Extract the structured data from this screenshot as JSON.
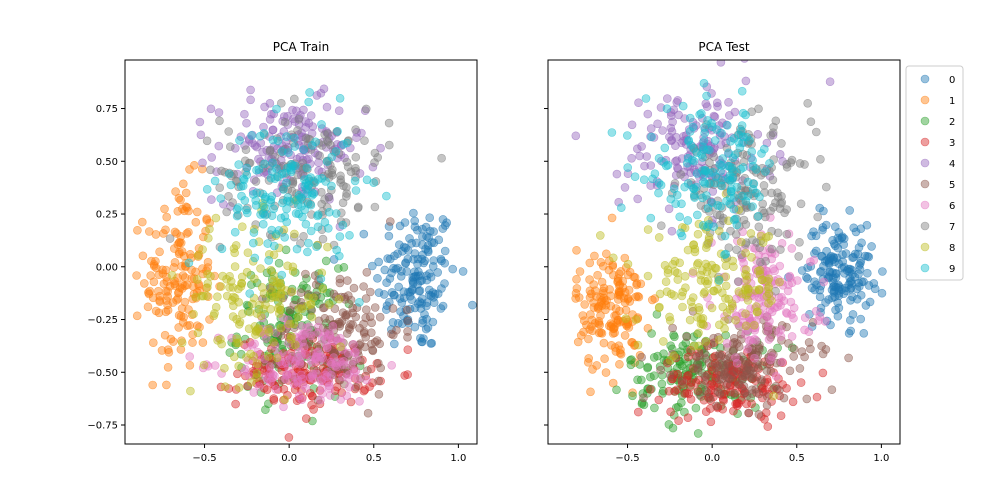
{
  "chart_data": [
    {
      "type": "scatter",
      "title": "PCA Train",
      "xlim": [
        -0.97,
        1.11
      ],
      "ylim": [
        -0.84,
        0.98
      ],
      "xticks": [
        -0.5,
        0.0,
        0.5,
        1.0
      ],
      "xtick_labels": [
        "−0.5",
        "0.0",
        "0.5",
        "1.0"
      ],
      "yticks": [
        -0.75,
        -0.5,
        -0.25,
        0.0,
        0.25,
        0.5,
        0.75
      ],
      "ytick_labels": [
        "−0.75",
        "−0.50",
        "−0.25",
        "0.00",
        "0.25",
        "0.50",
        "0.75"
      ],
      "clusters": [
        {
          "name": "0",
          "center": [
            0.75,
            -0.05
          ],
          "spread": [
            0.12,
            0.18
          ]
        },
        {
          "name": "1",
          "center": [
            -0.65,
            -0.05
          ],
          "spread": [
            0.1,
            0.22
          ]
        },
        {
          "name": "2",
          "center": [
            0.0,
            -0.3
          ],
          "spread": [
            0.15,
            0.15
          ]
        },
        {
          "name": "3",
          "center": [
            0.1,
            -0.5
          ],
          "spread": [
            0.2,
            0.08
          ]
        },
        {
          "name": "4",
          "center": [
            0.0,
            0.55
          ],
          "spread": [
            0.22,
            0.12
          ]
        },
        {
          "name": "5",
          "center": [
            0.3,
            -0.3
          ],
          "spread": [
            0.18,
            0.15
          ]
        },
        {
          "name": "6",
          "center": [
            0.1,
            -0.45
          ],
          "spread": [
            0.22,
            0.1
          ]
        },
        {
          "name": "7",
          "center": [
            0.1,
            0.45
          ],
          "spread": [
            0.25,
            0.15
          ]
        },
        {
          "name": "8",
          "center": [
            -0.2,
            -0.15
          ],
          "spread": [
            0.22,
            0.18
          ]
        },
        {
          "name": "9",
          "center": [
            0.0,
            0.35
          ],
          "spread": [
            0.2,
            0.18
          ]
        }
      ]
    },
    {
      "type": "scatter",
      "title": "PCA Test",
      "xlim": [
        -0.97,
        1.11
      ],
      "ylim": [
        -0.84,
        0.98
      ],
      "xticks": [
        -0.5,
        0.0,
        0.5,
        1.0
      ],
      "xtick_labels": [
        "−0.5",
        "0.0",
        "0.5",
        "1.0"
      ],
      "yticks": [
        -0.75,
        -0.5,
        -0.25,
        0.0,
        0.25,
        0.5,
        0.75
      ],
      "ytick_labels": [],
      "clusters": [
        {
          "name": "0",
          "center": [
            0.75,
            -0.02
          ],
          "spread": [
            0.1,
            0.12
          ]
        },
        {
          "name": "1",
          "center": [
            -0.6,
            -0.2
          ],
          "spread": [
            0.1,
            0.15
          ]
        },
        {
          "name": "2",
          "center": [
            -0.1,
            -0.5
          ],
          "spread": [
            0.2,
            0.1
          ]
        },
        {
          "name": "3",
          "center": [
            0.1,
            -0.55
          ],
          "spread": [
            0.2,
            0.08
          ]
        },
        {
          "name": "4",
          "center": [
            -0.1,
            0.55
          ],
          "spread": [
            0.22,
            0.15
          ]
        },
        {
          "name": "5",
          "center": [
            0.2,
            -0.45
          ],
          "spread": [
            0.2,
            0.1
          ]
        },
        {
          "name": "6",
          "center": [
            0.3,
            -0.15
          ],
          "spread": [
            0.15,
            0.15
          ]
        },
        {
          "name": "7",
          "center": [
            0.2,
            0.35
          ],
          "spread": [
            0.2,
            0.15
          ]
        },
        {
          "name": "8",
          "center": [
            0.0,
            -0.1
          ],
          "spread": [
            0.22,
            0.15
          ]
        },
        {
          "name": "9",
          "center": [
            0.0,
            0.45
          ],
          "spread": [
            0.2,
            0.15
          ]
        }
      ]
    }
  ],
  "legend": {
    "placement": "right",
    "entries": [
      "0",
      "1",
      "2",
      "3",
      "4",
      "5",
      "6",
      "7",
      "8",
      "9"
    ]
  },
  "colors": [
    "#1f77b4",
    "#ff7f0e",
    "#2ca02c",
    "#d62728",
    "#9467bd",
    "#8c564b",
    "#e377c2",
    "#7f7f7f",
    "#bcbd22",
    "#17becf"
  ]
}
